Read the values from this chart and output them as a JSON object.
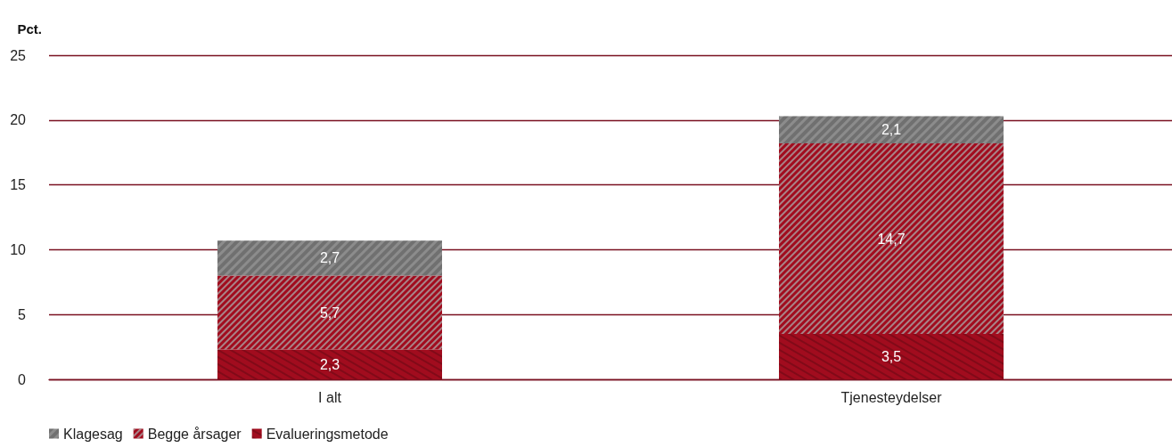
{
  "chart_data": {
    "type": "bar",
    "ylabel": "Pct.",
    "categories": [
      "I alt",
      "Tjenesteydelser"
    ],
    "stacked": true,
    "ylim": [
      0,
      25
    ],
    "yticks": [
      0,
      5,
      10,
      15,
      20,
      25
    ],
    "grid": "y",
    "legend": "bottom left",
    "series": [
      {
        "name": "Evalueringsmetode",
        "color": "#a10c1e",
        "values": [
          2.3,
          3.5
        ],
        "value_labels": [
          "2,3",
          "3,5"
        ]
      },
      {
        "name": "Begge årsager",
        "color": "#a10c1e",
        "values": [
          5.7,
          14.7
        ],
        "value_labels": [
          "5,7",
          "14,7"
        ]
      },
      {
        "name": "Klagesag",
        "color": "#8c8c8c",
        "values": [
          2.7,
          2.1
        ],
        "value_labels": [
          "2,7",
          "2,1"
        ]
      }
    ]
  }
}
